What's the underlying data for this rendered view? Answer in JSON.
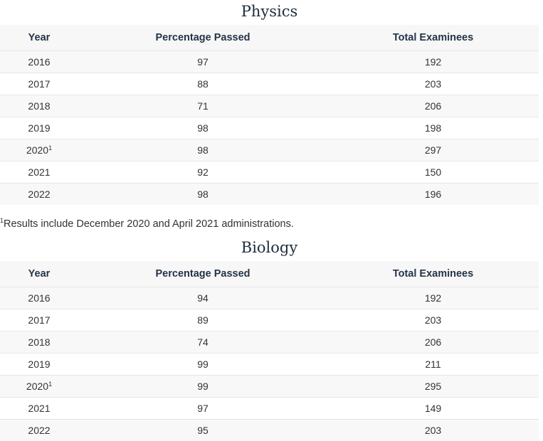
{
  "tables": [
    {
      "title": "Physics",
      "headers": [
        "Year",
        "Percentage Passed",
        "Total Examinees"
      ],
      "rows": [
        [
          {
            "text": "2016"
          },
          "97",
          "192"
        ],
        [
          {
            "text": "2017"
          },
          "88",
          "203"
        ],
        [
          {
            "text": "2018"
          },
          "71",
          "206"
        ],
        [
          {
            "text": "2019"
          },
          "98",
          "198"
        ],
        [
          {
            "text": "2020",
            "note": "1"
          },
          "98",
          "297"
        ],
        [
          {
            "text": "2021"
          },
          "92",
          "150"
        ],
        [
          {
            "text": "2022"
          },
          "98",
          "196"
        ]
      ],
      "footnote": {
        "marker": "1",
        "text": "Results include December 2020 and April 2021 administrations."
      }
    },
    {
      "title": "Biology",
      "headers": [
        "Year",
        "Percentage Passed",
        "Total Examinees"
      ],
      "rows": [
        [
          {
            "text": "2016"
          },
          "94",
          "192"
        ],
        [
          {
            "text": "2017"
          },
          "89",
          "203"
        ],
        [
          {
            "text": "2018"
          },
          "74",
          "206"
        ],
        [
          {
            "text": "2019"
          },
          "99",
          "211"
        ],
        [
          {
            "text": "2020",
            "note": "1"
          },
          "99",
          "295"
        ],
        [
          {
            "text": "2021"
          },
          "97",
          "149"
        ],
        [
          {
            "text": "2022"
          },
          "95",
          "203"
        ]
      ]
    }
  ]
}
